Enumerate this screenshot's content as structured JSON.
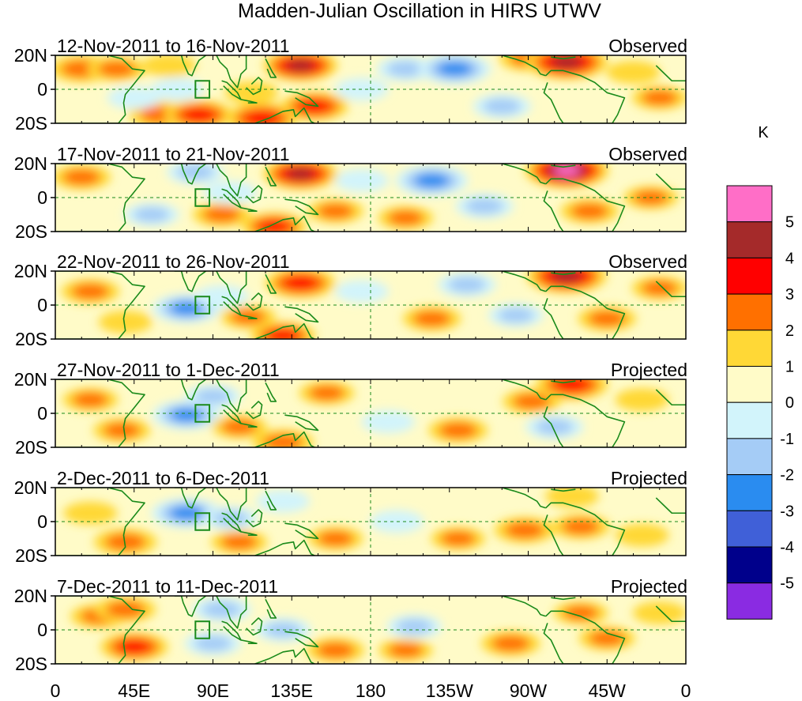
{
  "title": "Madden-Julian Oscillation in HIRS UTWV",
  "panels": [
    {
      "dates": "12-Nov-2011 to 16-Nov-2011",
      "status": "Observed"
    },
    {
      "dates": "17-Nov-2011 to 21-Nov-2011",
      "status": "Observed"
    },
    {
      "dates": "22-Nov-2011 to 26-Nov-2011",
      "status": "Observed"
    },
    {
      "dates": "27-Nov-2011 to 1-Dec-2011",
      "status": "Projected"
    },
    {
      "dates": "2-Dec-2011 to 6-Dec-2011",
      "status": "Projected"
    },
    {
      "dates": "7-Dec-2011 to 11-Dec-2011",
      "status": "Projected"
    }
  ],
  "lat_labels": [
    "20N",
    "0",
    "20S"
  ],
  "lon_labels": [
    "0",
    "45E",
    "90E",
    "135E",
    "180",
    "135W",
    "90W",
    "45W",
    "0"
  ],
  "colorbar": {
    "unit": "K",
    "labels": [
      "5",
      "4",
      "3",
      "2",
      "1",
      "0",
      "-1",
      "-2",
      "-3",
      "-4",
      "-5"
    ],
    "colors": [
      "#ff6ec7",
      "#a52a2a",
      "#ff0000",
      "#ff7000",
      "#ffd836",
      "#fffbc8",
      "#d2f4fb",
      "#a5ccf6",
      "#2a8cf0",
      "#4060d8",
      "#00008b",
      "#8a2be2"
    ]
  },
  "palette": {
    "base": "#fffbc8",
    "coast": "#1a8a1a",
    "ref_line": "#1a8a1a"
  },
  "anomalies": [
    [
      {
        "lon": 15,
        "lat": 12,
        "v": 2
      },
      {
        "lon": 35,
        "lat": 12,
        "v": 1.5
      },
      {
        "lon": 65,
        "lat": 14,
        "v": 1
      },
      {
        "lon": 60,
        "lat": -15,
        "v": 2
      },
      {
        "lon": 82,
        "lat": -15,
        "v": 2.6
      },
      {
        "lon": 118,
        "lat": -17,
        "v": 3
      },
      {
        "lon": 148,
        "lat": -10,
        "v": 2.5
      },
      {
        "lon": 140,
        "lat": 14,
        "v": 3.2
      },
      {
        "lon": 112,
        "lat": -2,
        "v": 1
      },
      {
        "lon": 200,
        "lat": 12,
        "v": -1.5
      },
      {
        "lon": 228,
        "lat": 12,
        "v": -3
      },
      {
        "lon": 255,
        "lat": -10,
        "v": -1.5
      },
      {
        "lon": 270,
        "lat": 18,
        "v": 1.5
      },
      {
        "lon": 292,
        "lat": 16,
        "v": 4
      },
      {
        "lon": 330,
        "lat": 10,
        "v": 1
      },
      {
        "lon": 345,
        "lat": -5,
        "v": 1.2
      },
      {
        "lon": 70,
        "lat": 0,
        "v": -1
      },
      {
        "lon": 45,
        "lat": -5,
        "v": -1
      },
      {
        "lon": 175,
        "lat": 0,
        "v": -1
      }
    ],
    [
      {
        "lon": 15,
        "lat": 12,
        "v": 1.5
      },
      {
        "lon": 55,
        "lat": -10,
        "v": -1.2
      },
      {
        "lon": 95,
        "lat": -10,
        "v": 1.5
      },
      {
        "lon": 140,
        "lat": 14,
        "v": 3.2
      },
      {
        "lon": 125,
        "lat": -17,
        "v": 2.2
      },
      {
        "lon": 160,
        "lat": -8,
        "v": 1.3
      },
      {
        "lon": 175,
        "lat": 10,
        "v": -1
      },
      {
        "lon": 215,
        "lat": 10,
        "v": -3
      },
      {
        "lon": 245,
        "lat": -5,
        "v": -1.5
      },
      {
        "lon": 200,
        "lat": -12,
        "v": 1.2
      },
      {
        "lon": 292,
        "lat": 16,
        "v": 4.2
      },
      {
        "lon": 305,
        "lat": -8,
        "v": 1.5
      },
      {
        "lon": 340,
        "lat": 0,
        "v": 1.1
      },
      {
        "lon": 80,
        "lat": 15,
        "v": -1.4
      },
      {
        "lon": 100,
        "lat": 3,
        "v": -1
      }
    ],
    [
      {
        "lon": 20,
        "lat": 8,
        "v": 1.5
      },
      {
        "lon": 40,
        "lat": -10,
        "v": 1
      },
      {
        "lon": 75,
        "lat": -2,
        "v": -2.6
      },
      {
        "lon": 110,
        "lat": -7,
        "v": 1.2
      },
      {
        "lon": 140,
        "lat": 13,
        "v": 2.8
      },
      {
        "lon": 130,
        "lat": -18,
        "v": 2.2
      },
      {
        "lon": 175,
        "lat": 8,
        "v": -1
      },
      {
        "lon": 235,
        "lat": 12,
        "v": -1.5
      },
      {
        "lon": 215,
        "lat": -8,
        "v": 1.5
      },
      {
        "lon": 263,
        "lat": -6,
        "v": -1.2
      },
      {
        "lon": 292,
        "lat": 17,
        "v": 3.8
      },
      {
        "lon": 315,
        "lat": -8,
        "v": 1.5
      },
      {
        "lon": 345,
        "lat": 10,
        "v": 1.2
      },
      {
        "lon": 95,
        "lat": 5,
        "v": -1
      }
    ],
    [
      {
        "lon": 20,
        "lat": 8,
        "v": 1.2
      },
      {
        "lon": 38,
        "lat": -10,
        "v": 1.4
      },
      {
        "lon": 75,
        "lat": -1,
        "v": -2.6
      },
      {
        "lon": 105,
        "lat": -8,
        "v": 1.2
      },
      {
        "lon": 130,
        "lat": -17,
        "v": 1.8
      },
      {
        "lon": 155,
        "lat": 12,
        "v": 1.2
      },
      {
        "lon": 190,
        "lat": -5,
        "v": -1
      },
      {
        "lon": 230,
        "lat": -10,
        "v": 1.6
      },
      {
        "lon": 272,
        "lat": 7,
        "v": 1.5
      },
      {
        "lon": 295,
        "lat": 17,
        "v": 3
      },
      {
        "lon": 285,
        "lat": -8,
        "v": -1.5
      },
      {
        "lon": 335,
        "lat": 8,
        "v": 1
      },
      {
        "lon": 90,
        "lat": 10,
        "v": -1.2
      }
    ],
    [
      {
        "lon": 20,
        "lat": 5,
        "v": 1
      },
      {
        "lon": 40,
        "lat": -12,
        "v": 2
      },
      {
        "lon": 75,
        "lat": 5,
        "v": -2.8
      },
      {
        "lon": 105,
        "lat": -12,
        "v": 1.3
      },
      {
        "lon": 130,
        "lat": 12,
        "v": -1
      },
      {
        "lon": 160,
        "lat": -10,
        "v": 1.2
      },
      {
        "lon": 195,
        "lat": 0,
        "v": -1
      },
      {
        "lon": 230,
        "lat": -10,
        "v": 1.1
      },
      {
        "lon": 268,
        "lat": -5,
        "v": 1.8
      },
      {
        "lon": 300,
        "lat": -3,
        "v": 1.5
      },
      {
        "lon": 295,
        "lat": 15,
        "v": 1
      },
      {
        "lon": 335,
        "lat": -8,
        "v": 1
      },
      {
        "lon": 100,
        "lat": 2,
        "v": -1.2
      }
    ],
    [
      {
        "lon": 25,
        "lat": 8,
        "v": 1.4
      },
      {
        "lon": 45,
        "lat": -10,
        "v": 2.5
      },
      {
        "lon": 40,
        "lat": 12,
        "v": 1.8
      },
      {
        "lon": 95,
        "lat": 12,
        "v": -1.6
      },
      {
        "lon": 90,
        "lat": -8,
        "v": -1.4
      },
      {
        "lon": 130,
        "lat": 0,
        "v": -1.3
      },
      {
        "lon": 160,
        "lat": -12,
        "v": 1.5
      },
      {
        "lon": 200,
        "lat": -12,
        "v": 1.1
      },
      {
        "lon": 205,
        "lat": 2,
        "v": -1.2
      },
      {
        "lon": 260,
        "lat": -8,
        "v": 1.6
      },
      {
        "lon": 300,
        "lat": 10,
        "v": 1.1
      },
      {
        "lon": 315,
        "lat": -5,
        "v": 1.3
      },
      {
        "lon": 345,
        "lat": 10,
        "v": 1
      }
    ]
  ]
}
